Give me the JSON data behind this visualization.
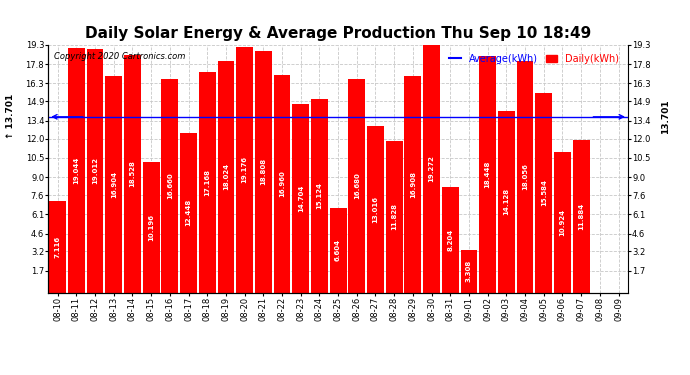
{
  "title": "Daily Solar Energy & Average Production Thu Sep 10 18:49",
  "copyright": "Copyright 2020 Cartronics.com",
  "average_label": "Average(kWh)",
  "daily_label": "Daily(kWh)",
  "average_value": 13.701,
  "categories": [
    "08-10",
    "08-11",
    "08-12",
    "08-13",
    "08-14",
    "08-15",
    "08-16",
    "08-17",
    "08-18",
    "08-19",
    "08-20",
    "08-21",
    "08-22",
    "08-23",
    "08-24",
    "08-25",
    "08-26",
    "08-27",
    "08-28",
    "08-29",
    "08-30",
    "08-31",
    "09-01",
    "09-02",
    "09-03",
    "09-04",
    "09-05",
    "09-06",
    "09-07",
    "09-08",
    "09-09"
  ],
  "values": [
    7.116,
    19.044,
    19.012,
    16.904,
    18.528,
    10.196,
    16.66,
    12.448,
    17.168,
    18.024,
    19.176,
    18.808,
    16.96,
    14.704,
    15.124,
    6.604,
    16.68,
    13.016,
    11.828,
    16.908,
    19.272,
    8.204,
    3.308,
    18.448,
    14.128,
    18.056,
    15.584,
    10.924,
    11.884,
    0.0,
    0.0
  ],
  "bar_color": "#ff0000",
  "average_line_color": "#0000ff",
  "background_color": "#ffffff",
  "grid_color": "#c8c8c8",
  "ylim": [
    0,
    19.3
  ],
  "yticks": [
    1.7,
    3.2,
    4.6,
    6.1,
    7.6,
    9.0,
    10.5,
    12.0,
    13.4,
    14.9,
    16.3,
    17.8,
    19.3
  ],
  "title_fontsize": 11,
  "tick_label_fontsize": 6,
  "bar_label_fontsize": 5,
  "copyright_fontsize": 6,
  "legend_fontsize": 7,
  "avg_label_fontsize": 6.5
}
